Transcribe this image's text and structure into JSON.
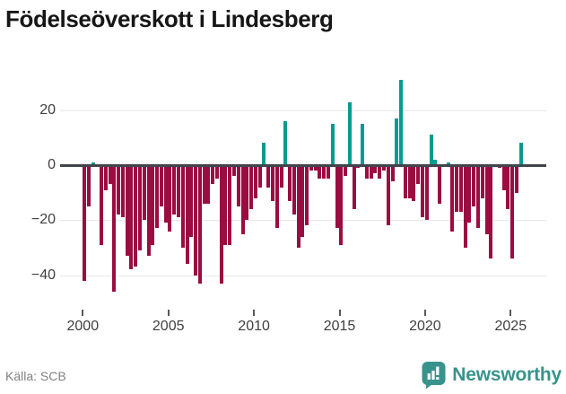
{
  "header": {
    "title": "Födelseöverskott i Lindesberg"
  },
  "chart_data": {
    "type": "bar",
    "title": "Födelseöverskott i Lindesberg",
    "frequency": "quarterly",
    "start_period": "2000 Q1",
    "end_period": "2025 Q3",
    "x_tick_labels": [
      "2000",
      "2005",
      "2010",
      "2015",
      "2020",
      "2025"
    ],
    "x_tick_years": [
      2000,
      2005,
      2010,
      2015,
      2020,
      2025
    ],
    "y_ticks": [
      20,
      0,
      -20,
      -40
    ],
    "y_tick_labels": [
      "20",
      "0",
      "−20",
      "−40"
    ],
    "ylim": [
      -49,
      34
    ],
    "grid": "horizontal",
    "legend": "none",
    "colors": {
      "positive": "#089a90",
      "negative": "#9b0c41",
      "zero_line": "#40454b",
      "gridline": "#e8e8e8"
    },
    "values": [
      -42,
      -15,
      1,
      0,
      -29,
      -9,
      -7,
      -46,
      -18,
      -19,
      -33,
      -38,
      -37,
      -31,
      -20,
      -33,
      -29,
      -23,
      -15,
      -21,
      -24,
      -18,
      -19,
      -30,
      -36,
      -26,
      -40,
      -43,
      -14,
      -14,
      -7,
      -5,
      -43,
      -29,
      -29,
      -4,
      -15,
      -25,
      -20,
      -16,
      -12,
      -8,
      8,
      -8,
      -13,
      -23,
      -8,
      16,
      -13,
      -18,
      -30,
      -26,
      -22,
      -2,
      -2,
      -5,
      -5,
      -5,
      15,
      -23,
      -29,
      -4,
      23,
      -16,
      -1,
      15,
      -5,
      -5,
      -3,
      -5,
      -2,
      -22,
      -6,
      17,
      31,
      -12,
      -12,
      -13,
      -7,
      -19,
      -20,
      11,
      2,
      -14,
      0,
      1,
      -24,
      -17,
      -17,
      -30,
      -21,
      -15,
      -23,
      -12,
      -25,
      -34,
      0,
      -1,
      -9,
      -16,
      -34,
      -10,
      8
    ]
  },
  "footer": {
    "source": "Källa: SCB"
  },
  "branding": {
    "logo_text": "Newsworthy",
    "logo_color": "#38938c",
    "logo_icon": "newsworthy-chart-bubble-icon"
  }
}
